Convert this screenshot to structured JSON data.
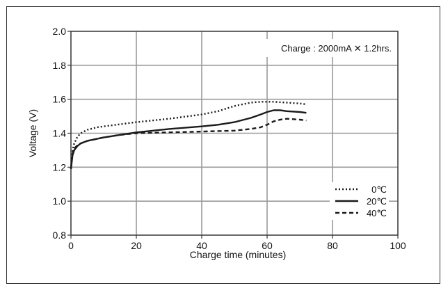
{
  "chart_data": {
    "type": "line",
    "annotation": "Charge : 2000mA ✕ 1.2hrs.",
    "xlabel": "Charge time (minutes)",
    "ylabel": "Voltage (V)",
    "xlim": [
      0,
      100
    ],
    "ylim": [
      0.8,
      2.0
    ],
    "x_ticks": [
      0,
      20,
      40,
      60,
      80,
      100
    ],
    "x_tick_labels": [
      "0",
      "20",
      "40",
      "60",
      "80",
      "100"
    ],
    "y_ticks": [
      0.8,
      1.0,
      1.2,
      1.4,
      1.6,
      1.8,
      2.0
    ],
    "y_tick_labels": [
      "0.8",
      "1.0",
      "1.2",
      "1.4",
      "1.6",
      "1.8",
      "2.0"
    ],
    "grid": true,
    "legend_position": "bottom-right",
    "series": [
      {
        "name": "0℃",
        "style": "dotted",
        "x": [
          0,
          0.5,
          1,
          2,
          3,
          5,
          8,
          10,
          20,
          30,
          40,
          45,
          50,
          55,
          58,
          62,
          66,
          70,
          72
        ],
        "y": [
          1.19,
          1.3,
          1.34,
          1.38,
          1.4,
          1.42,
          1.435,
          1.44,
          1.465,
          1.485,
          1.51,
          1.53,
          1.56,
          1.58,
          1.585,
          1.585,
          1.58,
          1.575,
          1.57
        ]
      },
      {
        "name": "20℃",
        "style": "solid",
        "x": [
          0,
          0.5,
          1,
          2,
          3,
          5,
          10,
          20,
          30,
          40,
          45,
          50,
          55,
          58,
          60,
          62,
          64,
          66,
          70,
          72
        ],
        "y": [
          1.19,
          1.27,
          1.3,
          1.325,
          1.34,
          1.355,
          1.375,
          1.405,
          1.425,
          1.44,
          1.45,
          1.465,
          1.49,
          1.51,
          1.525,
          1.535,
          1.535,
          1.53,
          1.525,
          1.52
        ]
      },
      {
        "name": "40℃",
        "style": "dashed",
        "x": [
          0,
          0.5,
          1,
          2,
          3,
          5,
          10,
          15,
          20,
          30,
          40,
          50,
          55,
          58,
          60,
          62,
          64,
          66,
          70,
          72
        ],
        "y": [
          1.19,
          1.28,
          1.31,
          1.33,
          1.34,
          1.355,
          1.375,
          1.39,
          1.4,
          1.405,
          1.41,
          1.415,
          1.425,
          1.435,
          1.45,
          1.47,
          1.48,
          1.485,
          1.48,
          1.475
        ]
      }
    ],
    "colors": {
      "line": "#1a1a1a",
      "grid": "#9a9a9a",
      "frame": "#333333"
    }
  }
}
